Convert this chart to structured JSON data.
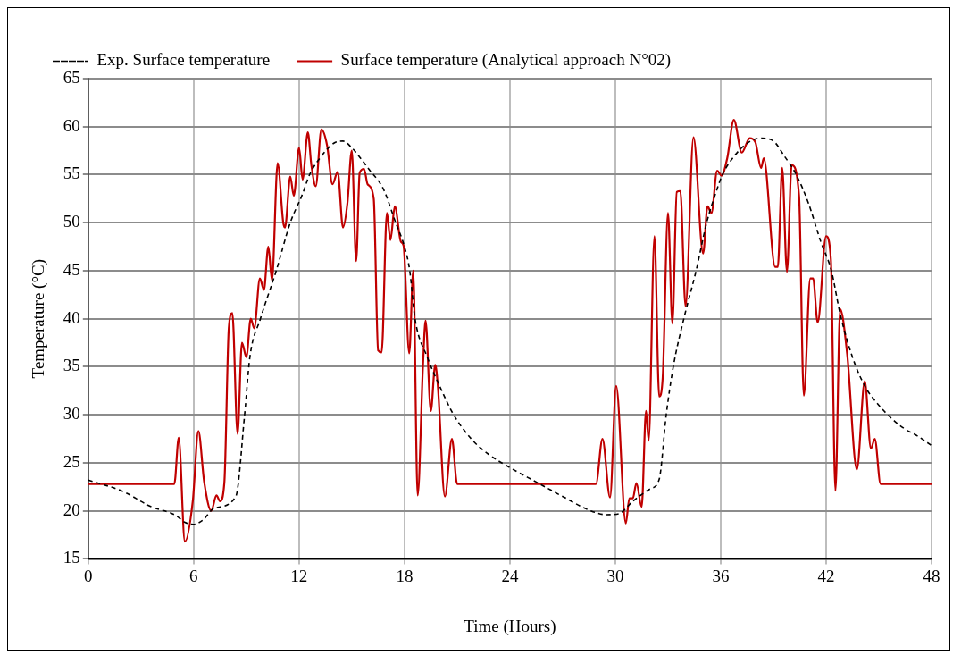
{
  "chart_data": {
    "type": "line",
    "xlabel": "Time (Hours)",
    "ylabel": "Temperature (°C)",
    "xlim": [
      0,
      48
    ],
    "xticks": [
      0,
      6,
      12,
      18,
      24,
      30,
      36,
      42,
      48
    ],
    "ylim": [
      15,
      65
    ],
    "yticks": [
      15,
      20,
      25,
      30,
      35,
      40,
      45,
      50,
      55,
      60,
      65
    ],
    "grid": true,
    "legend": "top",
    "marker": "none",
    "series": [
      {
        "name": "Exp. Surface temperature",
        "color": "#000000",
        "line_style": "dashed",
        "x": [
          0,
          2,
          3.5,
          5,
          5.5,
          6,
          6.5,
          7.2,
          8.4,
          8.9,
          9.2,
          9.8,
          10.7,
          11.5,
          12.2,
          12.6,
          13.3,
          14,
          14.5,
          15,
          16,
          16.8,
          17.5,
          18,
          18.3,
          18.6,
          19.3,
          20,
          20.8,
          21.8,
          22.7,
          24,
          25.5,
          27,
          28.6,
          29.5,
          30.2,
          31,
          32,
          32.5,
          32.9,
          33.3,
          33.9,
          34.6,
          35.2,
          35.7,
          36.1,
          36.8,
          37.7,
          38.3,
          39,
          39.6,
          40.3,
          41,
          41.7,
          42.3,
          42.8,
          43.5,
          44.2,
          45,
          45.8,
          46.5,
          47.2,
          48
        ],
        "values": [
          23.2,
          22,
          20.5,
          19.5,
          18.8,
          18.6,
          19,
          20.3,
          21.5,
          30,
          36,
          40,
          45,
          50,
          53,
          55,
          57,
          58.3,
          58.5,
          57.8,
          55.5,
          53.5,
          50,
          47.5,
          45,
          40,
          36,
          33,
          30,
          27.5,
          26,
          24.5,
          23,
          21.5,
          20,
          19.6,
          19.7,
          21,
          22.3,
          23.3,
          30,
          35,
          40,
          45,
          50,
          53,
          55,
          57,
          58.5,
          58.8,
          58.5,
          57,
          55,
          52,
          48,
          45,
          40.5,
          36,
          33,
          31,
          29.5,
          28.5,
          27.8,
          26.8
        ]
      },
      {
        "name": "Surface temperature (Analytical approach N°02)",
        "color": "#c00000",
        "line_style": "solid",
        "x": [
          0,
          4.9,
          5.15,
          5.5,
          5.95,
          6.27,
          6.6,
          7,
          7.3,
          7.5,
          7.75,
          8,
          8.2,
          8.5,
          8.75,
          9,
          9.25,
          9.45,
          9.77,
          10,
          10.25,
          10.46,
          10.78,
          11.1,
          11.2,
          11.5,
          11.7,
          12,
          12.2,
          12.5,
          12.7,
          12.95,
          13.27,
          13.6,
          13.9,
          14.2,
          14.5,
          14.75,
          15,
          15.25,
          15.45,
          15.7,
          15.9,
          16.25,
          16.5,
          16.7,
          17,
          17.2,
          17.45,
          17.8,
          17.95,
          18.27,
          18.5,
          18.75,
          19.05,
          19.2,
          19.5,
          19.75,
          19.9,
          20.3,
          20.7,
          21,
          28.9,
          29.27,
          29.7,
          30.05,
          30.6,
          30.8,
          31,
          31.2,
          31.5,
          31.75,
          31.9,
          32.23,
          32.5,
          32.7,
          33,
          33.25,
          33.5,
          33.7,
          34,
          34.45,
          35,
          35.25,
          35.47,
          35.8,
          36.05,
          36.37,
          36.75,
          37.2,
          37.65,
          37.97,
          38.3,
          38.45,
          39.1,
          39.25,
          39.5,
          39.77,
          40.04,
          40.46,
          40.73,
          41.1,
          41.26,
          41.52,
          42,
          42.27,
          42.53,
          42.8,
          43.2,
          43.75,
          44.2,
          44.55,
          44.77,
          45.1,
          48
        ],
        "values": [
          22.8,
          22.8,
          27.6,
          16.8,
          21,
          28.3,
          23,
          20,
          21.6,
          21,
          23,
          39,
          40.6,
          28,
          37.5,
          36,
          40,
          39,
          44.2,
          43,
          47.5,
          44,
          56.2,
          50,
          49.5,
          54.8,
          52.8,
          57.8,
          54.5,
          59.4,
          56,
          53.8,
          59.7,
          58,
          54,
          55.3,
          49.5,
          52,
          57.5,
          46,
          55.2,
          55.6,
          54,
          52.5,
          36.7,
          36.5,
          51,
          48.2,
          51.7,
          48,
          47.6,
          36.4,
          45,
          21.6,
          35,
          39.8,
          30.4,
          35.2,
          33,
          21.5,
          27.5,
          22.8,
          22.8,
          27.5,
          21.4,
          33,
          18.7,
          21.3,
          21.3,
          22.9,
          20.4,
          30.4,
          27.3,
          48.6,
          31.9,
          33.9,
          51,
          39.5,
          53.2,
          53.3,
          41.3,
          58.9,
          46.8,
          51.7,
          51,
          55.4,
          54.9,
          56.7,
          60.7,
          57.3,
          58.8,
          58.4,
          55.7,
          56.7,
          45.4,
          45.4,
          55.7,
          44.9,
          56,
          52.8,
          32,
          44.2,
          44.2,
          39.6,
          48.6,
          46.2,
          22.1,
          41,
          36.3,
          24.3,
          33.5,
          26.5,
          27.5,
          22.8,
          22.8
        ]
      }
    ]
  }
}
